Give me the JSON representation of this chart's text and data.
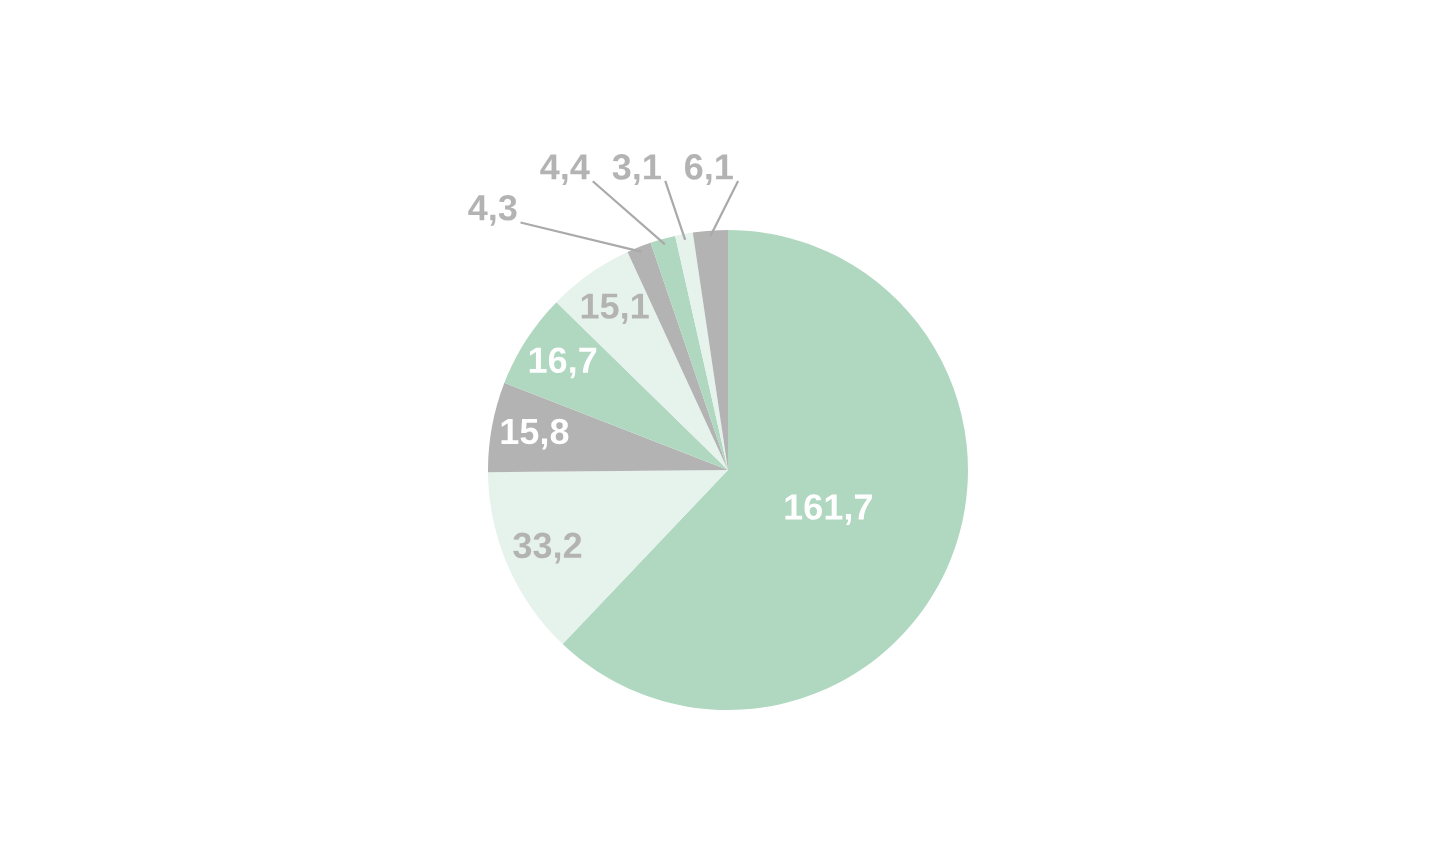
{
  "chart_data": {
    "type": "pie",
    "categories": [
      null,
      null,
      null,
      null,
      null,
      null,
      null,
      null,
      null
    ],
    "values": [
      161.7,
      33.2,
      15.8,
      16.7,
      15.1,
      4.3,
      4.4,
      3.1,
      6.1
    ],
    "value_labels": [
      "161,7",
      "33,2",
      "15,8",
      "16,7",
      "15,1",
      "4,3",
      "4,4",
      "3,1",
      "6,1"
    ],
    "colors": [
      "#b0d8c0",
      "#e6f2ec",
      "#b3b3b3",
      "#b0d8c0",
      "#e6f2ec",
      "#b3b3b3",
      "#b0d8c0",
      "#e6f2ec",
      "#b3b3b3"
    ]
  }
}
